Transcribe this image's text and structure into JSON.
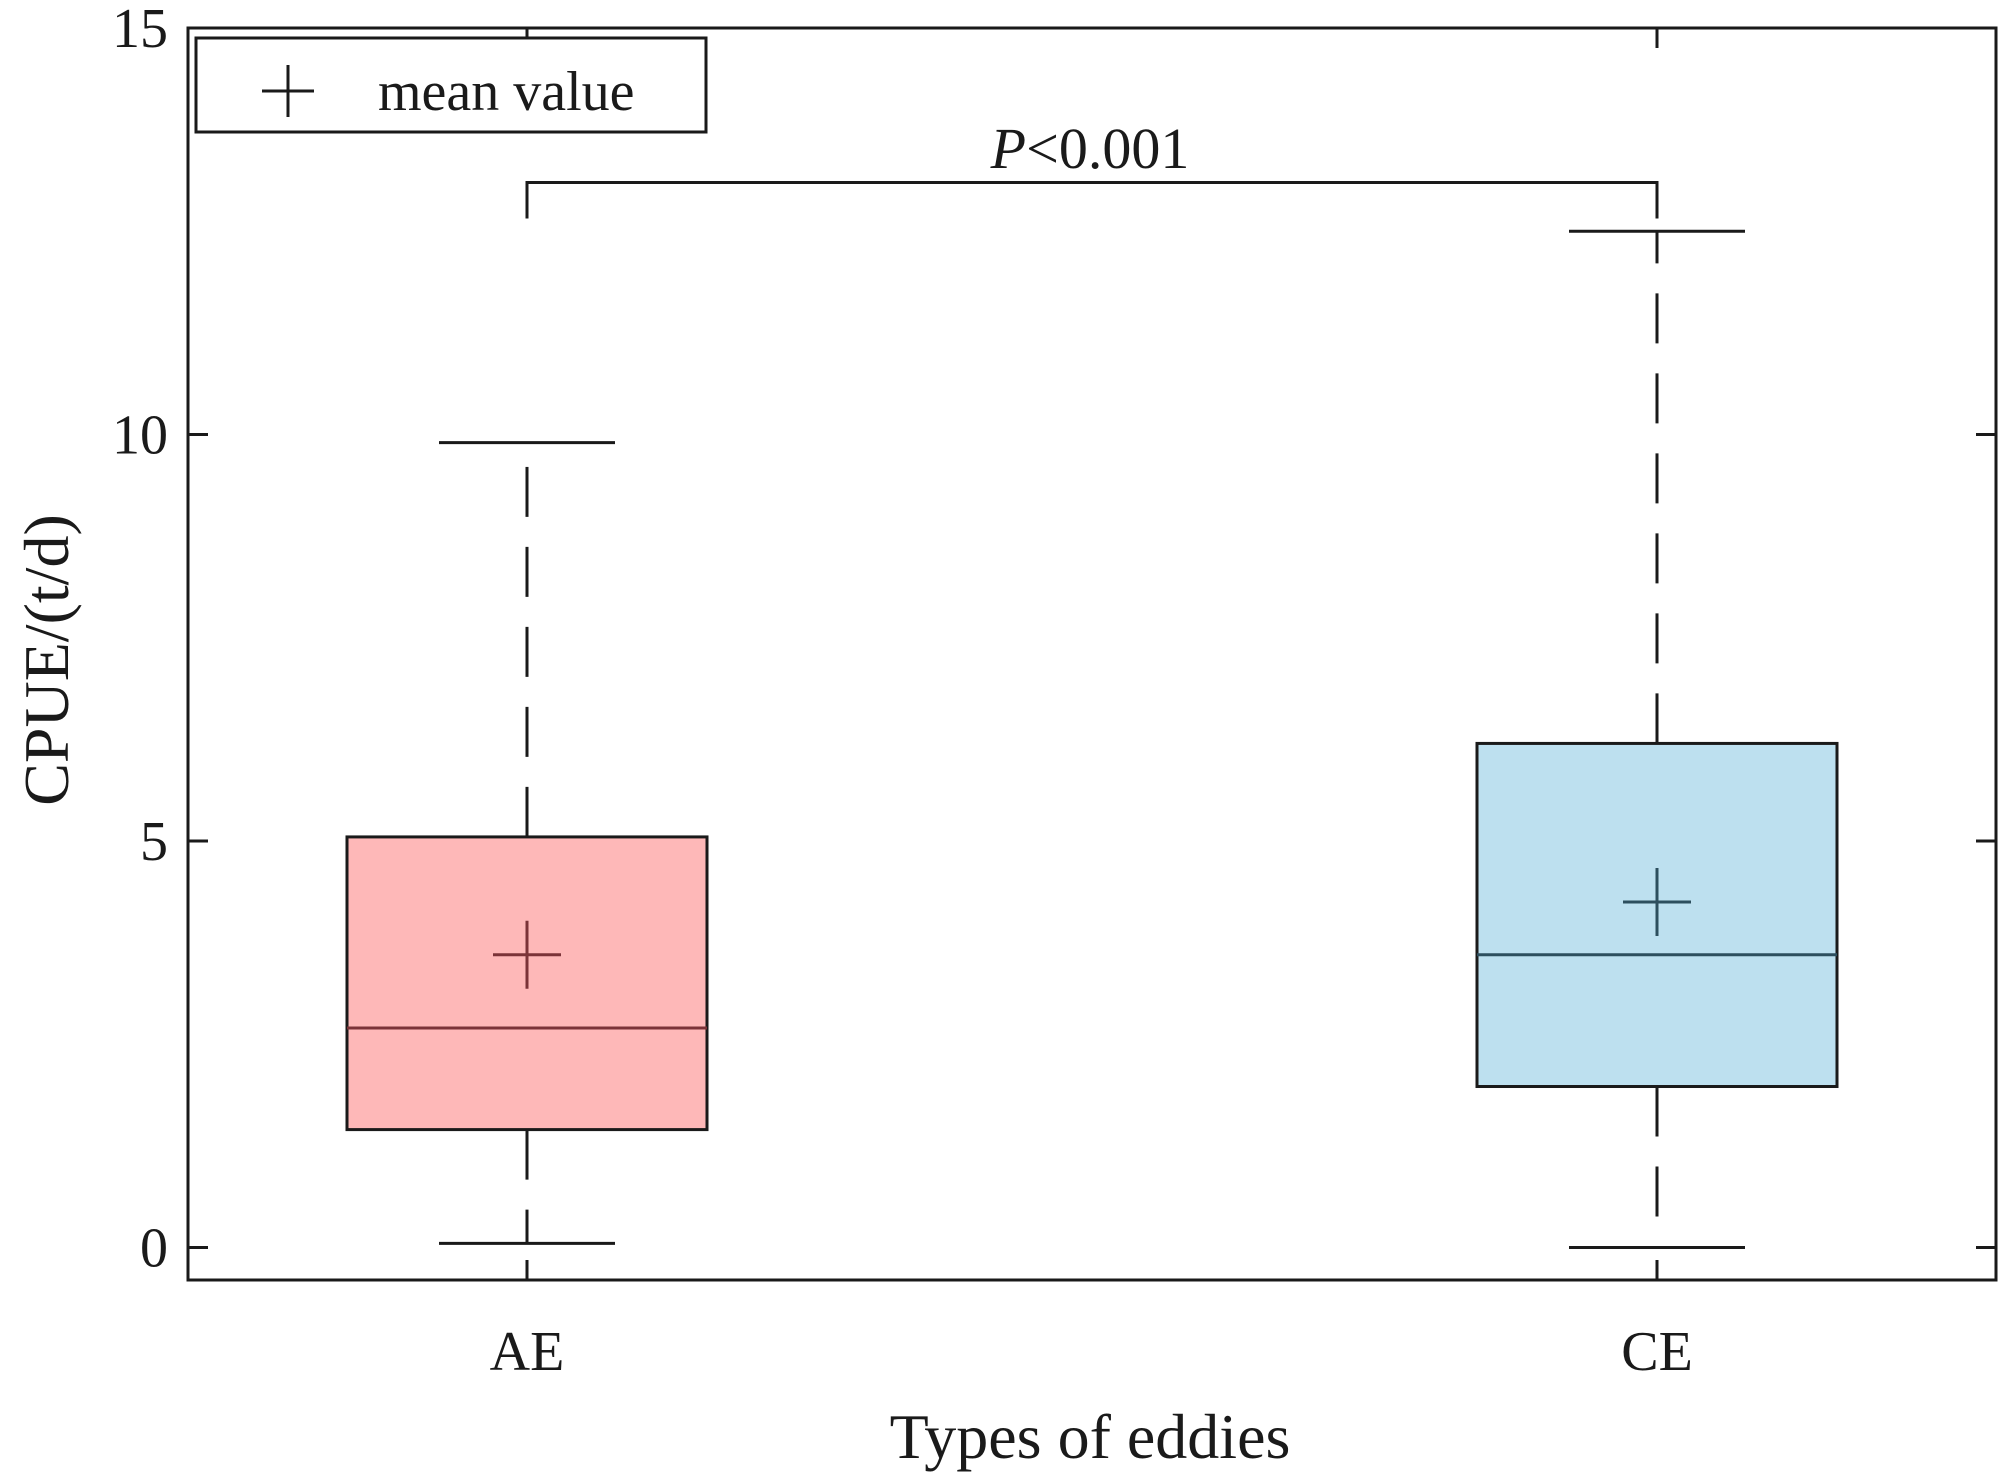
{
  "chart_data": {
    "type": "box",
    "xlabel": "Types of eddies",
    "ylabel": "CPUE/(t/d)",
    "ylim": [
      -0.4,
      15
    ],
    "yticks": [
      0,
      5,
      10,
      15
    ],
    "grid": false,
    "legend": {
      "placement": "top-left",
      "label": "mean value",
      "symbol": "plus"
    },
    "annotation": {
      "italic": "P",
      "rest": "<0.001",
      "between": [
        "AE",
        "CE"
      ],
      "level": 13.1
    },
    "categories": [
      "AE",
      "CE"
    ],
    "boxes": [
      {
        "category": "AE",
        "min": 0.05,
        "q1": 1.45,
        "median": 2.7,
        "q3": 5.05,
        "max": 9.9,
        "mean": 3.6,
        "fill": "#feb8b8",
        "accent": "#7b3338"
      },
      {
        "category": "CE",
        "min": 0.0,
        "q1": 1.98,
        "median": 3.6,
        "q3": 6.2,
        "max": 12.5,
        "mean": 4.25,
        "fill": "#bde0ef",
        "accent": "#2d4f5e"
      }
    ]
  }
}
